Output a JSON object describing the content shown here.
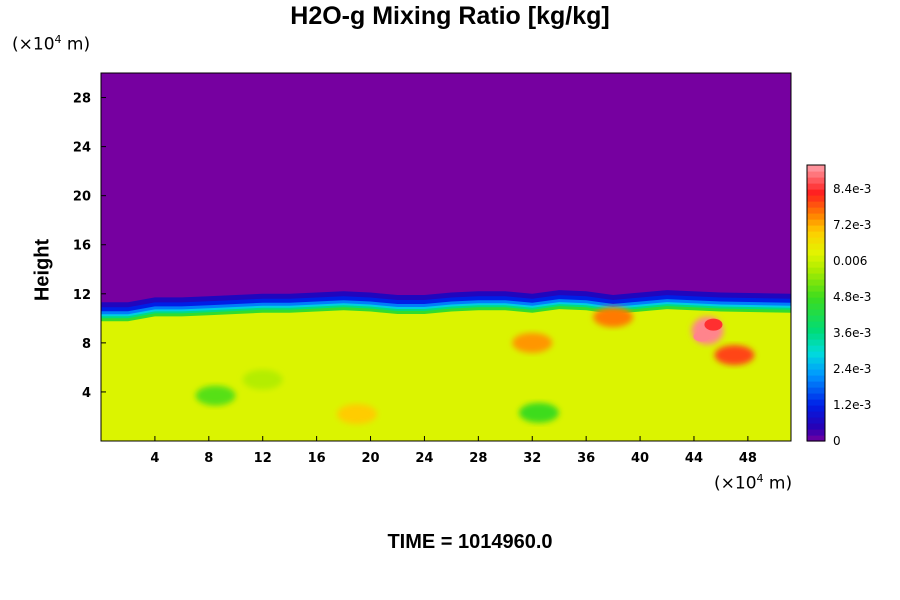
{
  "chart_data": {
    "type": "heatmap",
    "title": "H2O-g Mixing Ratio [kg/kg]",
    "xlabel": "",
    "ylabel": "Height",
    "x_unit": {
      "prefix": "(×10",
      "exp": "4",
      "suffix": " m)"
    },
    "y_unit": {
      "prefix": "(×10",
      "exp": "4",
      "suffix": " m)"
    },
    "xlim": [
      0,
      51.2
    ],
    "ylim": [
      0,
      30
    ],
    "x_ticks": [
      4,
      8,
      12,
      16,
      20,
      24,
      28,
      32,
      36,
      40,
      44,
      48
    ],
    "x_tick_labels": [
      "4",
      "8",
      "12",
      "16",
      "20",
      "24",
      "28",
      "32",
      "36",
      "40",
      "44",
      "48"
    ],
    "y_ticks": [
      4,
      8,
      12,
      16,
      20,
      24,
      28
    ],
    "y_tick_labels": [
      "4",
      "8",
      "12",
      "16",
      "20",
      "24",
      "28"
    ],
    "colorbar": {
      "range": [
        0,
        0.0092
      ],
      "tick_values": [
        0,
        0.0012,
        0.0024,
        0.0036,
        0.0048,
        0.006,
        0.0072,
        0.0084
      ],
      "tick_labels": [
        "0",
        "1.2e-3",
        "2.4e-3",
        "3.6e-3",
        "4.8e-3",
        "0.006",
        "7.2e-3",
        "8.4e-3"
      ]
    },
    "field": {
      "dry_layer_value": 0,
      "moist_layer_value": 0.0062,
      "moist_layer_top_height": [
        10.0,
        10.0,
        10.4,
        10.4,
        10.5,
        10.6,
        10.7,
        10.7,
        10.8,
        10.9,
        10.8,
        10.6,
        10.6,
        10.8,
        10.9,
        10.9,
        10.7,
        11.0,
        10.9,
        10.6,
        11.0,
        10.8,
        10.7
      ],
      "moist_layer_top_x": [
        0,
        2,
        4,
        6,
        8,
        10,
        12,
        14,
        16,
        18,
        20,
        22,
        24,
        26,
        28,
        30,
        32,
        34,
        36,
        38,
        42,
        46,
        51.2
      ],
      "features": [
        {
          "x": 8.5,
          "y": 3.7,
          "value": 0.005
        },
        {
          "x": 19.0,
          "y": 2.2,
          "value": 0.007
        },
        {
          "x": 32.5,
          "y": 2.3,
          "value": 0.0048
        },
        {
          "x": 32.0,
          "y": 8.0,
          "value": 0.0074
        },
        {
          "x": 38.0,
          "y": 10.1,
          "value": 0.0076
        },
        {
          "x": 45.0,
          "y": 9.0,
          "value": 0.009
        },
        {
          "x": 47.0,
          "y": 7.0,
          "value": 0.008
        },
        {
          "x": 12.0,
          "y": 5.0,
          "value": 0.0058
        }
      ]
    },
    "footer": "TIME = 1014960.0"
  }
}
